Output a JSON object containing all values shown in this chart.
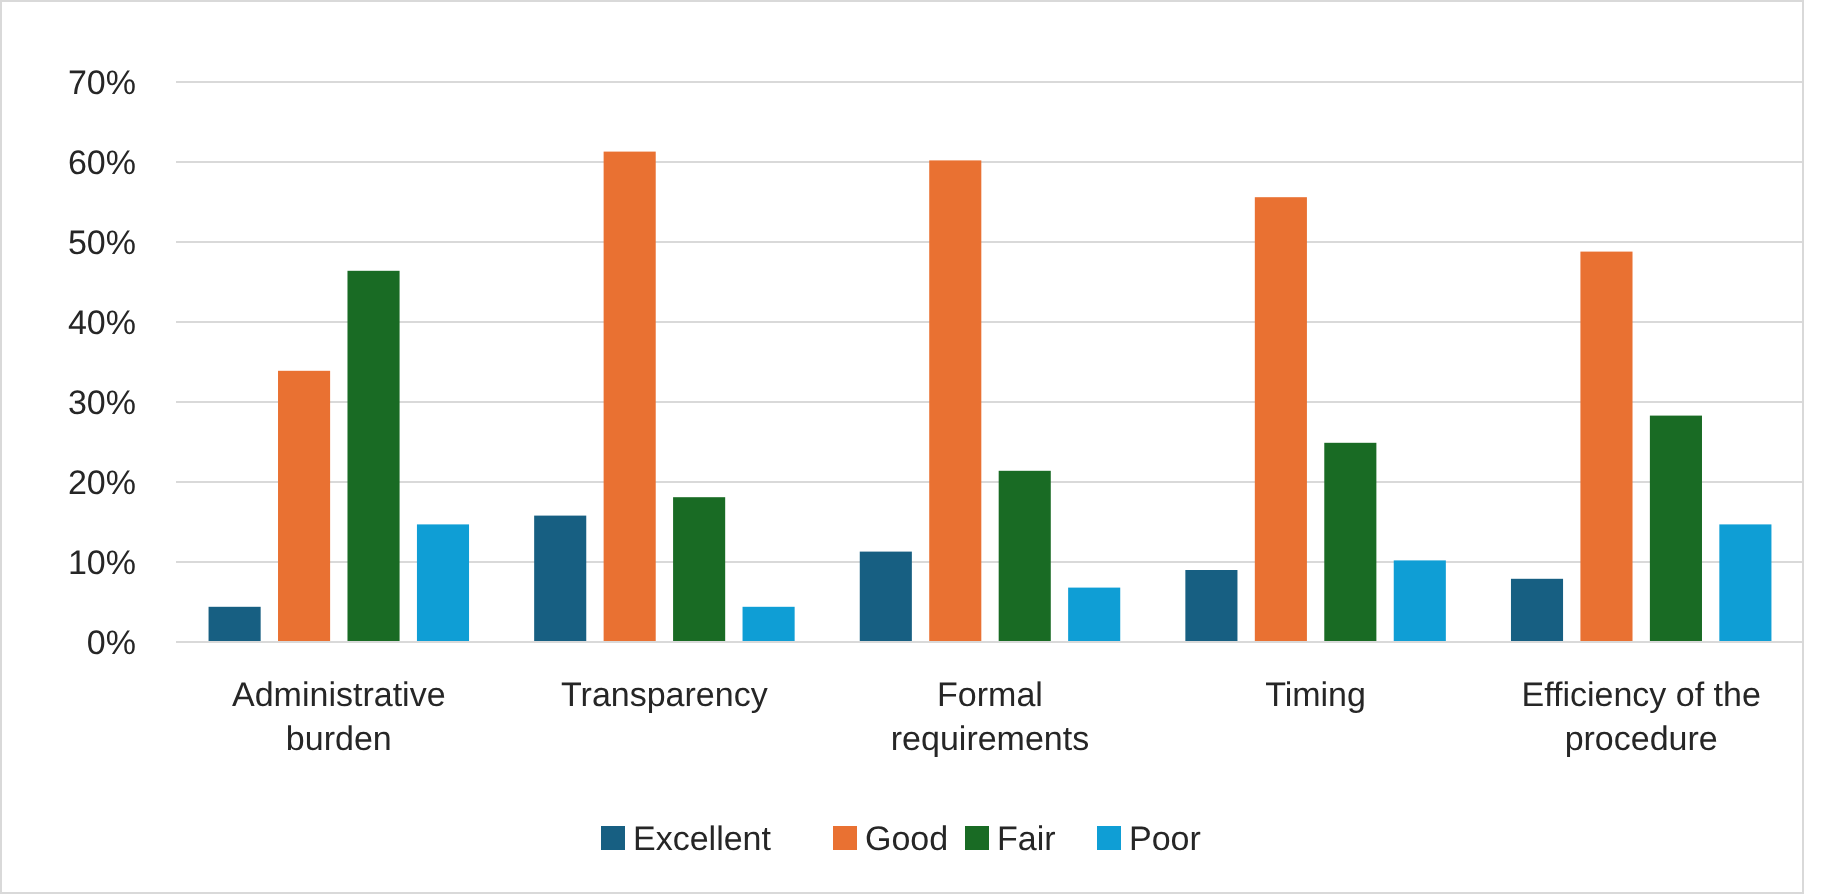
{
  "chart_data": {
    "type": "bar",
    "categories": [
      "Administrative burden",
      "Transparency",
      "Formal requirements",
      "Timing",
      "Efficiency of the procedure"
    ],
    "series": [
      {
        "name": "Excellent",
        "color": "#175f82",
        "values": [
          4.4,
          15.8,
          11.3,
          9,
          7.9
        ]
      },
      {
        "name": "Good",
        "color": "#e97132",
        "values": [
          33.9,
          61.3,
          60.2,
          55.6,
          48.8
        ]
      },
      {
        "name": "Fair",
        "color": "#196b24",
        "values": [
          46.4,
          18.1,
          21.4,
          24.9,
          28.3
        ]
      },
      {
        "name": "Poor",
        "color": "#0f9ed5",
        "values": [
          14.7,
          4.4,
          6.8,
          10.2,
          14.7
        ]
      }
    ],
    "ylim": [
      0,
      70
    ],
    "yticks": [
      {
        "value": 0,
        "label": "0%"
      },
      {
        "value": 10,
        "label": "10%"
      },
      {
        "value": 20,
        "label": "20%"
      },
      {
        "value": 30,
        "label": "30%"
      },
      {
        "value": 40,
        "label": "40%"
      },
      {
        "value": 50,
        "label": "50%"
      },
      {
        "value": 60,
        "label": "60%"
      },
      {
        "value": 70,
        "label": "70%"
      }
    ],
    "grid": "y",
    "legend": "bottom"
  }
}
